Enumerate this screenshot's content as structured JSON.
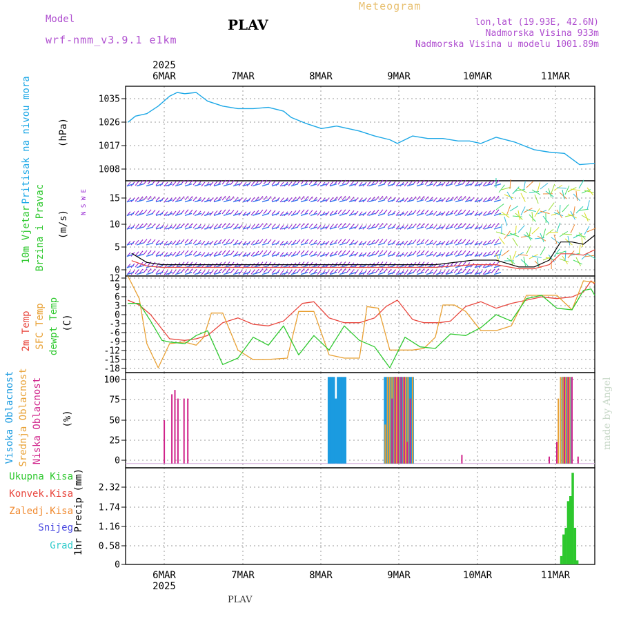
{
  "header": {
    "model_label": "Model",
    "model_name": "wrf-nmm_v3.9.1 e1km",
    "station": "PLAV",
    "title": "Meteogram",
    "coords": "lon,lat (19.93E, 42.6N)",
    "elevation": "Nadmorska Visina 933m",
    "model_elevation": "Nadmorska Visina u modelu 1001.89m",
    "footer_station": "PLAV",
    "credit": "made by Angel"
  },
  "colors": {
    "pressure": "#1ba7e6",
    "temp2m": "#e8453c",
    "sfc_temp": "#e8a033",
    "dewpoint": "#2ec82e",
    "high_cloud": "#1b9be0",
    "mid_cloud": "#e8a033",
    "low_cloud": "#d0238a",
    "precip_total": "#2ec82e",
    "wind_purple": "#9320d0",
    "wind_blue": "#3377ee",
    "grid": "#999999"
  },
  "chart_data": [
    {
      "type": "line",
      "id": "pressure",
      "ylabel_lines": [
        "Pritisak na nivou mora"
      ],
      "unit": "(hPa)",
      "yticks": [
        "1035",
        "1026",
        "1017",
        "1008"
      ],
      "ylim": [
        1002,
        1040
      ],
      "x_days": [
        -0.55,
        -0.45,
        -0.3,
        -0.15,
        0.0,
        0.1,
        0.2,
        0.35,
        0.5,
        0.7,
        0.9,
        1.1,
        1.3,
        1.5,
        1.6,
        1.8,
        2.0,
        2.2,
        2.35,
        2.5,
        2.7,
        2.9,
        3.0,
        3.2,
        3.4,
        3.6,
        3.8,
        3.95,
        4.1,
        4.3,
        4.55,
        4.8,
        5.0,
        5.2,
        5.4,
        5.6
      ],
      "values": [
        1025.5,
        1028,
        1029,
        1032,
        1036,
        1037.5,
        1037,
        1037.5,
        1034,
        1032,
        1031,
        1031,
        1031.5,
        1030,
        1027.5,
        1025,
        1023,
        1024,
        1023,
        1022,
        1020,
        1018.5,
        1017,
        1020,
        1019,
        1019,
        1018,
        1018,
        1017,
        1019.5,
        1017.5,
        1014.5,
        1013.5,
        1013,
        1008.5,
        1009
      ]
    },
    {
      "type": "wind",
      "id": "wind",
      "ylabel_lines": [
        "10m Vjetar",
        "Brzina i Pravac"
      ],
      "unit": "(m/s)",
      "compass": "N S W E",
      "yticks": [
        "15",
        "10",
        "5",
        "0"
      ],
      "ylim": [
        -1,
        20
      ],
      "speed_x_days": [
        -0.5,
        -0.3,
        -0.1,
        0.2,
        0.6,
        1.0,
        1.5,
        2.0,
        2.5,
        3.0,
        3.5,
        4.0,
        4.3,
        4.6,
        4.8,
        5.0,
        5.15,
        5.3,
        5.45,
        5.6
      ],
      "speed_values": [
        4,
        2,
        1.5,
        1.5,
        1.5,
        1.5,
        1.5,
        1.5,
        1.5,
        1.5,
        1.5,
        2.5,
        2.5,
        1.0,
        1.0,
        2.5,
        6.5,
        6.5,
        6.0,
        8.0
      ]
    },
    {
      "type": "line",
      "id": "temperature",
      "ylabel_lines": [
        "2m Temp",
        "SFC Temp",
        "dewpt Temp"
      ],
      "unit": "(C)",
      "yticks": [
        "12",
        "9",
        "6",
        "3",
        "0",
        "-3",
        "-6",
        "-9",
        "-12",
        "-15",
        "-18"
      ],
      "ylim": [
        -18,
        12
      ],
      "series": [
        {
          "name": "2m Temp",
          "x_days": [
            -0.55,
            -0.4,
            -0.25,
            -0.1,
            0.0,
            0.2,
            0.35,
            0.5,
            0.7,
            0.9,
            1.1,
            1.3,
            1.5,
            1.75,
            1.9,
            2.1,
            2.3,
            2.5,
            2.7,
            2.85,
            3.0,
            3.2,
            3.35,
            3.55,
            3.7,
            3.9,
            4.1,
            4.3,
            4.5,
            4.7,
            4.9,
            5.1,
            5.3,
            5.45,
            5.55,
            5.6
          ],
          "values": [
            4.5,
            3.0,
            0.0,
            -4.5,
            -7.5,
            -8.0,
            -7.5,
            -6.5,
            -2.5,
            -1.0,
            -3.0,
            -3.5,
            -2.0,
            3.5,
            4.0,
            -1.0,
            -2.5,
            -2.5,
            -1.0,
            2.5,
            4.5,
            -1.5,
            -2.5,
            -2.5,
            -2.0,
            2.5,
            4.0,
            2.0,
            3.5,
            4.5,
            5.5,
            5.0,
            5.5,
            7.0,
            10.5,
            9.5
          ]
        },
        {
          "name": "SFC Temp",
          "x_days": [
            -0.55,
            -0.4,
            -0.3,
            -0.15,
            0.0,
            0.2,
            0.35,
            0.45,
            0.55,
            0.7,
            0.9,
            1.1,
            1.25,
            1.55,
            1.7,
            1.9,
            2.1,
            2.3,
            2.5,
            2.6,
            2.75,
            2.9,
            3.1,
            3.2,
            3.35,
            3.5,
            3.6,
            3.75,
            3.9,
            4.1,
            4.3,
            4.5,
            4.7,
            4.9,
            5.1,
            5.3,
            5.45,
            5.6
          ],
          "values": [
            12,
            5.0,
            -9.0,
            -16.5,
            -9.0,
            -8.5,
            -9.5,
            -7.0,
            0.5,
            0.5,
            -11.0,
            -14.0,
            -14.0,
            -13.5,
            1.0,
            1.0,
            -12.5,
            -13.5,
            -13.5,
            2.5,
            2.0,
            -11.0,
            -11.0,
            -11.0,
            -10.5,
            -7.0,
            3.0,
            3.0,
            1.0,
            -5.0,
            -5.0,
            -3.5,
            6.0,
            6.0,
            6.0,
            1.5,
            10.5,
            10.0
          ]
        },
        {
          "name": "dewpt Temp",
          "x_days": [
            -0.55,
            -0.4,
            -0.25,
            -0.1,
            0.0,
            0.2,
            0.35,
            0.5,
            0.7,
            0.9,
            1.1,
            1.3,
            1.5,
            1.7,
            1.9,
            2.1,
            2.3,
            2.5,
            2.7,
            2.9,
            3.1,
            3.3,
            3.5,
            3.7,
            3.9,
            4.1,
            4.3,
            4.5,
            4.7,
            4.9,
            5.1,
            5.3,
            5.45,
            5.55,
            5.6
          ],
          "values": [
            3.5,
            3.5,
            -2.0,
            -8.0,
            -8.5,
            -9.0,
            -6.5,
            -5.0,
            -15.5,
            -13.5,
            -7.0,
            -9.5,
            -3.5,
            -12.5,
            -6.5,
            -11.0,
            -3.5,
            -8.0,
            -10.0,
            -16.5,
            -7.0,
            -10.0,
            -10.5,
            -6.0,
            -6.5,
            -4.0,
            0.0,
            -2.0,
            5.0,
            6.0,
            2.0,
            1.5,
            7.5,
            8.0,
            6.0
          ]
        }
      ]
    },
    {
      "type": "bar",
      "id": "cloud",
      "ylabel_lines": [
        "Visoka Oblacnost",
        "Srednja Oblacnost",
        "Niska Oblacnost"
      ],
      "unit": "(%)",
      "yticks": [
        "100",
        "75",
        "50",
        "25",
        "0"
      ],
      "ylim": [
        -5,
        105
      ],
      "series": [
        {
          "name": "Visoka Oblacnost",
          "x_days": [
            2.1,
            2.13,
            2.16,
            2.19,
            2.22,
            2.25,
            2.28,
            2.31,
            2.84,
            2.87,
            2.9,
            2.93,
            2.96,
            2.99,
            3.02,
            3.05,
            3.08,
            3.11,
            3.14,
            3.17,
            3.2,
            5.18,
            5.21,
            5.24,
            5.27
          ],
          "values": [
            100,
            100,
            100,
            75,
            100,
            100,
            100,
            100,
            100,
            100,
            100,
            100,
            100,
            100,
            100,
            100,
            100,
            100,
            100,
            100,
            100,
            100,
            100,
            100,
            100
          ]
        },
        {
          "name": "Srednja Oblacnost",
          "x_days": [
            2.84,
            2.87,
            2.9,
            2.93,
            2.96,
            2.99,
            3.02,
            3.05,
            3.08,
            3.11,
            3.14,
            3.17,
            3.2,
            5.12,
            5.15,
            5.18,
            5.21,
            5.24,
            5.27,
            5.3
          ],
          "values": [
            45,
            100,
            100,
            100,
            100,
            100,
            100,
            100,
            100,
            100,
            100,
            75,
            100,
            75,
            100,
            100,
            100,
            100,
            100,
            100
          ]
        },
        {
          "name": "Niska Oblacnost",
          "x_days": [
            -0.07,
            0.03,
            0.07,
            0.11,
            0.19,
            0.24,
            2.93,
            2.97,
            3.01,
            3.05,
            3.09,
            3.13,
            3.17,
            3.85,
            5.0,
            5.1,
            5.2,
            5.25,
            5.3,
            5.38
          ],
          "values": [
            50,
            80,
            85,
            75,
            75,
            75,
            75,
            100,
            100,
            100,
            100,
            25,
            75,
            10,
            8,
            25,
            100,
            100,
            100,
            8
          ]
        }
      ]
    },
    {
      "type": "bar",
      "id": "precip",
      "ylabel_lines": [
        "1hr Precip (mm)"
      ],
      "legend": [
        "Ukupna Kisa",
        "Konvek.Kisa",
        "Zaledj.Kisa",
        "Snijeg",
        "Grad"
      ],
      "legend_colors": [
        "#2ec82e",
        "#e8453c",
        "#f08a30",
        "#4a4ae0",
        "#33cccc"
      ],
      "yticks": [
        "2.32",
        "1.74",
        "1.16",
        "0.58",
        "0"
      ],
      "ylim": [
        0,
        2.9
      ],
      "x_days": [
        5.16,
        5.19,
        5.22,
        5.25,
        5.28,
        5.31,
        5.34,
        5.37
      ],
      "values": [
        0.25,
        0.9,
        1.1,
        1.9,
        2.05,
        2.75,
        1.1,
        0.12
      ]
    }
  ],
  "x_axis": {
    "year": "2025",
    "labels": [
      "6MAR",
      "7MAR",
      "8MAR",
      "9MAR",
      "10MAR",
      "11MAR"
    ],
    "day_values": [
      0,
      1,
      2,
      3,
      4,
      5
    ],
    "xlim": [
      -0.58,
      5.6
    ]
  }
}
